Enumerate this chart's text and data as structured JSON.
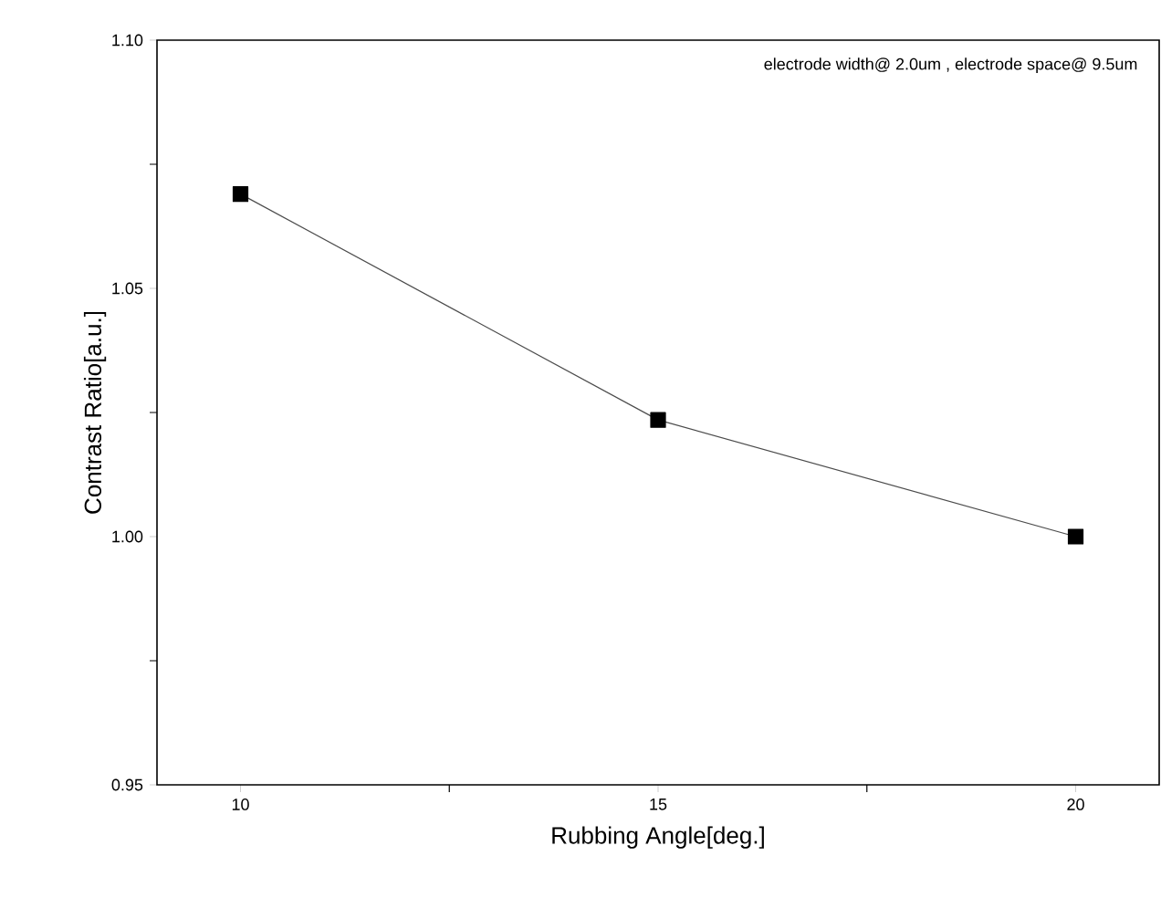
{
  "chart_data": {
    "type": "line",
    "xlabel": "Rubbing Angle[deg.]",
    "ylabel": "Contrast Ratio[a.u.]",
    "annotations": [
      "electrode width@ 2.0um , electrode space@ 9.5um"
    ],
    "x": [
      10,
      15,
      20
    ],
    "series": [
      {
        "color": "#000000",
        "values": [
          1.069,
          1.0235,
          1.0
        ]
      }
    ],
    "xlim": [
      9,
      21
    ],
    "ylim": [
      0.95,
      1.1
    ],
    "xticks": [
      10,
      {
        "value": 12.5,
        "label": null
      },
      15,
      {
        "value": 17.5,
        "label": null
      },
      20
    ],
    "yticks": [
      {
        "value": 0.95,
        "label": "0.95"
      },
      {
        "value": 0.975,
        "label": null
      },
      {
        "value": 1.0,
        "label": "1.00"
      },
      {
        "value": 1.025,
        "label": null
      },
      {
        "value": 1.05,
        "label": "1.05"
      },
      {
        "value": 1.075,
        "label": null
      },
      {
        "value": 1.1,
        "label": "1.10"
      }
    ],
    "marker": "square",
    "line_style": "solid"
  }
}
